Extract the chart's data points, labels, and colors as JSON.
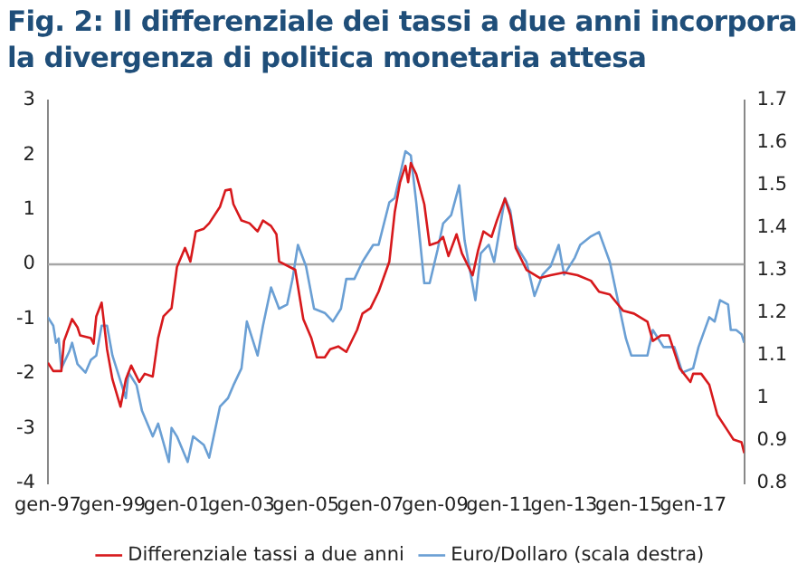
{
  "chart_data": {
    "type": "line",
    "title": "Fig. 2: Il differenziale dei tassi a due anni incorpora la divergenza di politica monetaria attesa",
    "xlim": [
      "1997-01",
      "2018-08"
    ],
    "xticks": [
      {
        "value": "1997-01",
        "label": "gen-97"
      },
      {
        "value": "1999-01",
        "label": "gen-99"
      },
      {
        "value": "2001-01",
        "label": "gen-01"
      },
      {
        "value": "2003-01",
        "label": "gen-03"
      },
      {
        "value": "2005-01",
        "label": "gen-05"
      },
      {
        "value": "2007-01",
        "label": "gen-07"
      },
      {
        "value": "2009-01",
        "label": "gen-09"
      },
      {
        "value": "2011-01",
        "label": "gen-11"
      },
      {
        "value": "2013-01",
        "label": "gen-13"
      },
      {
        "value": "2015-01",
        "label": "gen-15"
      },
      {
        "value": "2017-01",
        "label": "gen-17"
      }
    ],
    "ylim": [
      -4,
      3
    ],
    "yticks": [
      -4,
      -3,
      -2,
      -1,
      0,
      1,
      2,
      3
    ],
    "y2lim": [
      0.8,
      1.7
    ],
    "y2ticks": [
      0.8,
      0.9,
      1,
      1.1,
      1.2,
      1.3,
      1.4,
      1.5,
      1.6,
      1.7
    ],
    "grid": false,
    "legend": "bottom",
    "marker": "none",
    "line_style": "solid",
    "ref_lines": [
      {
        "axis": "y",
        "value": 0,
        "color": "#a6a6a6"
      }
    ],
    "series": [
      {
        "name": "Differenziale tassi a due anni",
        "color": "#d7191c",
        "x": [
          "1997-01",
          "1997-03",
          "1997-06",
          "1997-07",
          "1997-10",
          "1997-12",
          "1998-01",
          "1998-05",
          "1998-06",
          "1998-07",
          "1998-09",
          "1998-11",
          "1999-01",
          "1999-04",
          "1999-06",
          "1999-08",
          "1999-11",
          "2000-01",
          "2000-04",
          "2000-06",
          "2000-08",
          "2000-11",
          "2001-01",
          "2001-04",
          "2001-06",
          "2001-08",
          "2001-11",
          "2002-01",
          "2002-05",
          "2002-07",
          "2002-09",
          "2002-10",
          "2003-01",
          "2003-04",
          "2003-07",
          "2003-09",
          "2003-12",
          "2004-02",
          "2004-03",
          "2004-07",
          "2004-09",
          "2004-12",
          "2005-03",
          "2005-05",
          "2005-08",
          "2005-10",
          "2006-01",
          "2006-04",
          "2006-08",
          "2006-10",
          "2007-01",
          "2007-04",
          "2007-08",
          "2007-10",
          "2007-12",
          "2008-02",
          "2008-03",
          "2008-04",
          "2008-06",
          "2008-09",
          "2008-11",
          "2009-02",
          "2009-04",
          "2009-06",
          "2009-09",
          "2009-11",
          "2010-03",
          "2010-05",
          "2010-07",
          "2010-10",
          "2010-12",
          "2011-03",
          "2011-05",
          "2011-07",
          "2011-11",
          "2012-04",
          "2012-08",
          "2013-01",
          "2013-06",
          "2013-11",
          "2014-02",
          "2014-06",
          "2014-11",
          "2015-03",
          "2015-08",
          "2015-10",
          "2016-01",
          "2016-04",
          "2016-08",
          "2016-12",
          "2017-01",
          "2017-04",
          "2017-07",
          "2017-10",
          "2018-02",
          "2018-04",
          "2018-07",
          "2018-08"
        ],
        "values": [
          -1.8,
          -1.95,
          -1.95,
          -1.4,
          -1.0,
          -1.15,
          -1.3,
          -1.35,
          -1.45,
          -0.95,
          -0.7,
          -1.55,
          -2.1,
          -2.6,
          -2.1,
          -1.85,
          -2.15,
          -2.0,
          -2.05,
          -1.35,
          -0.95,
          -0.8,
          -0.05,
          0.3,
          0.05,
          0.6,
          0.65,
          0.75,
          1.05,
          1.35,
          1.37,
          1.1,
          0.8,
          0.75,
          0.6,
          0.8,
          0.7,
          0.55,
          0.05,
          -0.05,
          -0.1,
          -1.0,
          -1.35,
          -1.7,
          -1.7,
          -1.55,
          -1.5,
          -1.6,
          -1.2,
          -0.9,
          -0.8,
          -0.5,
          0.05,
          0.95,
          1.5,
          1.8,
          1.5,
          1.85,
          1.65,
          1.1,
          0.35,
          0.4,
          0.5,
          0.15,
          0.55,
          0.2,
          -0.2,
          0.25,
          0.6,
          0.5,
          0.8,
          1.2,
          0.9,
          0.3,
          -0.1,
          -0.25,
          -0.2,
          -0.15,
          -0.2,
          -0.3,
          -0.5,
          -0.55,
          -0.85,
          -0.9,
          -1.05,
          -1.4,
          -1.3,
          -1.3,
          -1.9,
          -2.15,
          -2.0,
          -2.0,
          -2.2,
          -2.75,
          -3.05,
          -3.2,
          -3.25,
          -3.45
        ]
      },
      {
        "name": "Euro/Dollaro (scala destra)",
        "color": "#6a9fd4",
        "axis": "y2",
        "x": [
          "1997-01",
          "1997-03",
          "1997-04",
          "1997-05",
          "1997-06",
          "1997-09",
          "1997-10",
          "1997-12",
          "1998-03",
          "1998-05",
          "1998-07",
          "1998-09",
          "1998-11",
          "1999-01",
          "1999-04",
          "1999-06",
          "1999-07",
          "1999-10",
          "1999-12",
          "2000-04",
          "2000-06",
          "2000-10",
          "2000-11",
          "2001-01",
          "2001-05",
          "2001-07",
          "2001-11",
          "2002-01",
          "2002-05",
          "2002-08",
          "2002-10",
          "2003-01",
          "2003-03",
          "2003-07",
          "2003-09",
          "2003-12",
          "2004-03",
          "2004-06",
          "2004-08",
          "2004-10",
          "2005-01",
          "2005-04",
          "2005-08",
          "2005-11",
          "2006-02",
          "2006-04",
          "2006-07",
          "2006-10",
          "2007-02",
          "2007-04",
          "2007-08",
          "2007-10",
          "2008-02",
          "2008-04",
          "2008-06",
          "2008-09",
          "2008-11",
          "2009-02",
          "2009-04",
          "2009-07",
          "2009-10",
          "2009-12",
          "2010-04",
          "2010-06",
          "2010-09",
          "2010-11",
          "2011-03",
          "2011-05",
          "2011-07",
          "2011-11",
          "2012-02",
          "2012-05",
          "2012-08",
          "2012-11",
          "2013-01",
          "2013-05",
          "2013-07",
          "2013-11",
          "2014-02",
          "2014-06",
          "2014-08",
          "2014-12",
          "2015-02",
          "2015-04",
          "2015-08",
          "2015-10",
          "2016-02",
          "2016-06",
          "2016-09",
          "2017-01",
          "2017-03",
          "2017-07",
          "2017-09",
          "2017-11",
          "2018-02",
          "2018-03",
          "2018-05",
          "2018-07",
          "2018-08"
        ],
        "values": [
          1.19,
          1.17,
          1.13,
          1.14,
          1.07,
          1.11,
          1.13,
          1.08,
          1.06,
          1.09,
          1.1,
          1.17,
          1.17,
          1.1,
          1.04,
          1.0,
          1.06,
          1.03,
          0.97,
          0.91,
          0.94,
          0.85,
          0.93,
          0.91,
          0.85,
          0.91,
          0.89,
          0.86,
          0.98,
          1.0,
          1.03,
          1.07,
          1.18,
          1.1,
          1.17,
          1.26,
          1.21,
          1.22,
          1.28,
          1.36,
          1.31,
          1.21,
          1.2,
          1.18,
          1.21,
          1.28,
          1.28,
          1.32,
          1.36,
          1.36,
          1.46,
          1.47,
          1.58,
          1.57,
          1.46,
          1.27,
          1.27,
          1.35,
          1.41,
          1.43,
          1.5,
          1.37,
          1.23,
          1.34,
          1.36,
          1.32,
          1.47,
          1.44,
          1.36,
          1.32,
          1.24,
          1.29,
          1.31,
          1.36,
          1.29,
          1.33,
          1.36,
          1.38,
          1.39,
          1.32,
          1.26,
          1.14,
          1.1,
          1.1,
          1.1,
          1.16,
          1.12,
          1.12,
          1.06,
          1.07,
          1.12,
          1.19,
          1.18,
          1.23,
          1.22,
          1.16,
          1.16,
          1.15,
          1.13
        ]
      }
    ]
  }
}
